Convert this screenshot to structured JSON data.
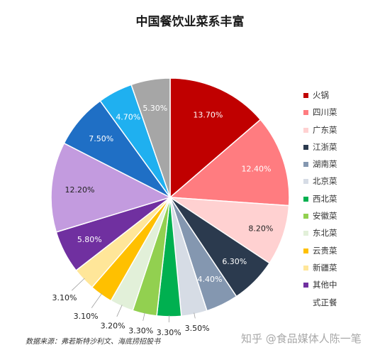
{
  "chart_data": {
    "type": "pie",
    "title": "中国餐饮业菜系丰富",
    "slices": [
      {
        "label": "火锅",
        "value": 13.7,
        "display": "13.70%",
        "color": "#c00000"
      },
      {
        "label": "四川菜",
        "value": 12.4,
        "display": "12.40%",
        "color": "#ff7c80"
      },
      {
        "label": "广东菜",
        "value": 8.2,
        "display": "8.20%",
        "color": "#ffd1d1"
      },
      {
        "label": "江浙菜",
        "value": 6.3,
        "display": "6.30%",
        "color": "#2b3a4e"
      },
      {
        "label": "湖南菜",
        "value": 4.4,
        "display": "4.40%",
        "color": "#8497b0"
      },
      {
        "label": "北京菜",
        "value": 3.5,
        "display": "3.50%",
        "color": "#d6dce5"
      },
      {
        "label": "西北菜",
        "value": 3.3,
        "display": "3.30%",
        "color": "#00b050"
      },
      {
        "label": "安徽菜",
        "value": 3.3,
        "display": "3.30%",
        "color": "#92d050"
      },
      {
        "label": "东北菜",
        "value": 3.2,
        "display": "3.20%",
        "color": "#e2f0d9"
      },
      {
        "label": "云贵菜",
        "value": 3.1,
        "display": "3.10%",
        "color": "#ffc000"
      },
      {
        "label": "新疆菜",
        "value": 3.1,
        "display": "3.10%",
        "color": "#ffe699"
      },
      {
        "label": "其他中式正餐",
        "value": 5.8,
        "display": "5.80%",
        "color": "#7030a0"
      },
      {
        "label": "",
        "value": 12.2,
        "display": "12.20%",
        "color": "#c39bdf"
      },
      {
        "label": "",
        "value": 7.5,
        "display": "7.50%",
        "color": "#1f6fc5"
      },
      {
        "label": "",
        "value": 4.7,
        "display": "4.70%",
        "color": "#1fb0f0"
      },
      {
        "label": "",
        "value": 5.3,
        "display": "5.30%",
        "color": "#a6a6a6"
      }
    ],
    "legend_position": "right",
    "legend": [
      {
        "label": "火锅",
        "color": "#c00000"
      },
      {
        "label": "四川菜",
        "color": "#ff7c80"
      },
      {
        "label": "广东菜",
        "color": "#ffd1d1"
      },
      {
        "label": "江浙菜",
        "color": "#2b3a4e"
      },
      {
        "label": "湖南菜",
        "color": "#8497b0"
      },
      {
        "label": "北京菜",
        "color": "#d6dce5"
      },
      {
        "label": "西北菜",
        "color": "#00b050"
      },
      {
        "label": "安徽菜",
        "color": "#92d050"
      },
      {
        "label": "东北菜",
        "color": "#e2f0d9"
      },
      {
        "label": "云贵菜",
        "color": "#ffc000"
      },
      {
        "label": "新疆菜",
        "color": "#ffe699"
      },
      {
        "label": "其他中",
        "color": "#7030a0"
      },
      {
        "label": "式正餐",
        "color": ""
      }
    ]
  },
  "source": "数据来源：弗若斯特沙利文、海底捞招股书",
  "watermark": "知乎 @食品媒体人陈一笔"
}
